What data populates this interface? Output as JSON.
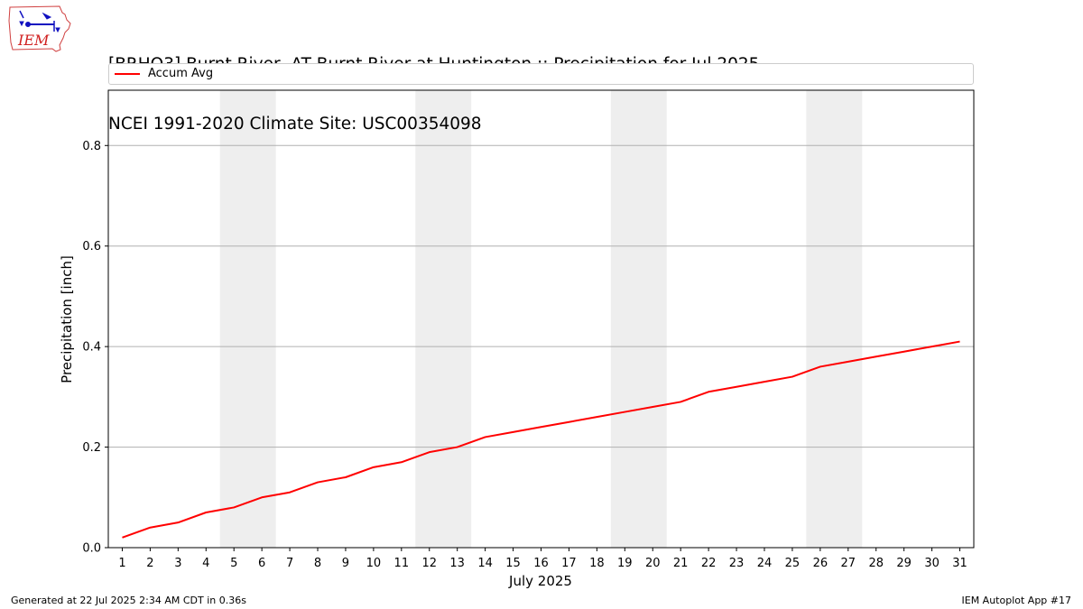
{
  "header": {
    "title_line1": "[BRHO3] Burnt River  AT Burnt River at Huntington :: Precipitation for Jul 2025",
    "title_line2": "NCEI 1991-2020 Climate Site: USC00354098"
  },
  "logo": {
    "text": "IEM",
    "icon": "iem-iowa-weather-logo"
  },
  "footer": {
    "left": "Generated at 22 Jul 2025 2:34 AM CDT in 0.36s",
    "right": "IEM Autoplot App #17"
  },
  "colors": {
    "line": "#ff0000",
    "weekend_band": "#eeeeee",
    "grid": "#b0b0b0"
  },
  "chart_data": {
    "type": "line",
    "title": "[BRHO3] Burnt River  AT Burnt River at Huntington :: Precipitation for Jul 2025",
    "subtitle": "NCEI 1991-2020 Climate Site: USC00354098",
    "xlabel": "July 2025",
    "ylabel": "Precipitation [inch]",
    "x": [
      1,
      2,
      3,
      4,
      5,
      6,
      7,
      8,
      9,
      10,
      11,
      12,
      13,
      14,
      15,
      16,
      17,
      18,
      19,
      20,
      21,
      22,
      23,
      24,
      25,
      26,
      27,
      28,
      29,
      30,
      31
    ],
    "xlim": [
      0.5,
      31.5
    ],
    "ylim": [
      0,
      0.91
    ],
    "yticks": [
      0.0,
      0.2,
      0.4,
      0.6,
      0.8
    ],
    "ytick_labels": [
      "0.0",
      "0.2",
      "0.4",
      "0.6",
      "0.8"
    ],
    "grid": "y-axis",
    "legend_placement": "top",
    "weekend_days": [
      5,
      6,
      12,
      13,
      19,
      20,
      26,
      27
    ],
    "series": [
      {
        "name": "Accum Avg",
        "color": "#ff0000",
        "values": [
          0.02,
          0.04,
          0.05,
          0.07,
          0.08,
          0.1,
          0.11,
          0.13,
          0.14,
          0.16,
          0.17,
          0.19,
          0.2,
          0.22,
          0.23,
          0.24,
          0.25,
          0.26,
          0.27,
          0.28,
          0.29,
          0.31,
          0.32,
          0.33,
          0.34,
          0.36,
          0.37,
          0.38,
          0.39,
          0.4,
          0.41
        ]
      }
    ]
  }
}
